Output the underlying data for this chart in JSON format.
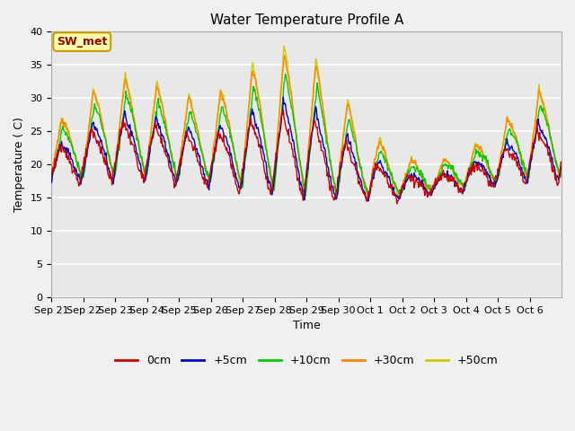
{
  "title": "Water Temperature Profile A",
  "xlabel": "Time",
  "ylabel": "Temperature ( C)",
  "ylim": [
    0,
    40
  ],
  "yticks": [
    0,
    5,
    10,
    15,
    20,
    25,
    30,
    35,
    40
  ],
  "legend_labels": [
    "0cm",
    "+5cm",
    "+10cm",
    "+30cm",
    "+50cm"
  ],
  "legend_colors": [
    "#cc0000",
    "#0000cc",
    "#00cc00",
    "#ff8800",
    "#cccc00"
  ],
  "annotation_text": "SW_met",
  "annotation_color": "#990000",
  "annotation_bg": "#ffffaa",
  "annotation_border": "#cc9900",
  "fig_bg": "#f0f0f0",
  "plot_bg": "#e8e8e8",
  "title_fontsize": 11,
  "axis_fontsize": 9,
  "tick_fontsize": 8
}
